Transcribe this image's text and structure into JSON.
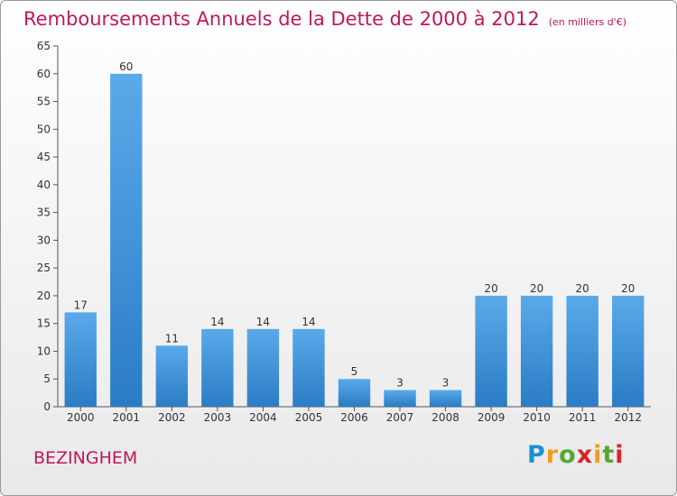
{
  "title": "Remboursements Annuels de la Dette de 2000 à 2012",
  "subtitle": "(en milliers d'€)",
  "town": "BEZINGHEM",
  "logo": "Proxiti",
  "colors": {
    "bar": "#3a8fd9",
    "bar_light": "#5aaaea",
    "title": "#c0185a"
  },
  "chart_data": {
    "type": "bar",
    "title": "Remboursements Annuels de la Dette de 2000 à 2012",
    "subtitle": "(en milliers d'€)",
    "categories": [
      "2000",
      "2001",
      "2002",
      "2003",
      "2004",
      "2005",
      "2006",
      "2007",
      "2008",
      "2009",
      "2010",
      "2011",
      "2012"
    ],
    "values": [
      17,
      60,
      11,
      14,
      14,
      14,
      5,
      3,
      3,
      20,
      20,
      20,
      20
    ],
    "ylim": [
      0,
      65
    ],
    "yticks": [
      0,
      5,
      10,
      15,
      20,
      25,
      30,
      35,
      40,
      45,
      50,
      55,
      60,
      65
    ],
    "grid": false,
    "legend": "none"
  }
}
